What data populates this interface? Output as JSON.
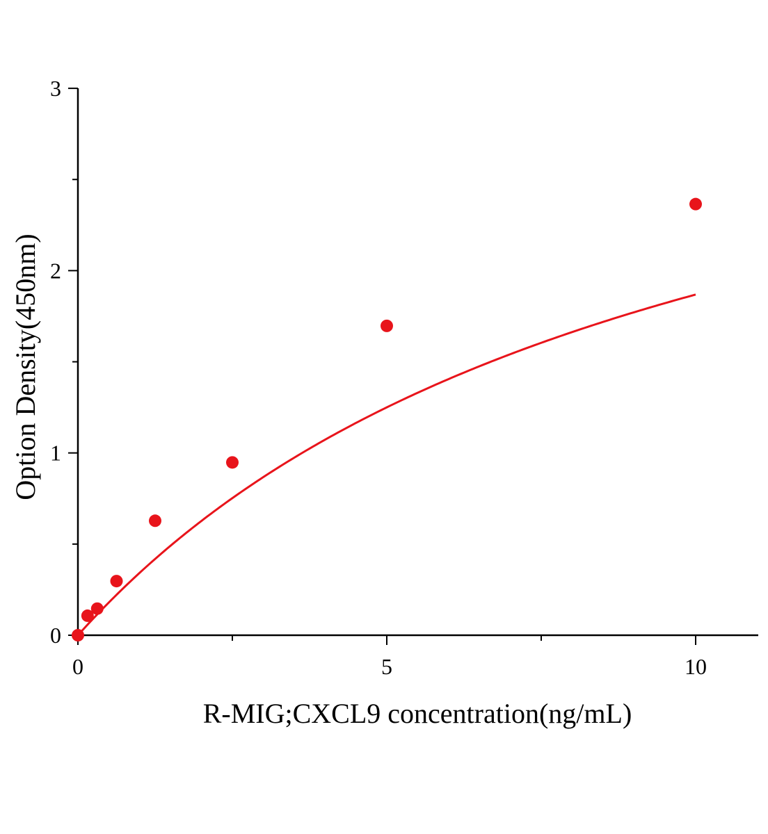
{
  "chart_data": {
    "type": "scatter",
    "title": "",
    "xlabel": "R-MIG;CXCL9 concentration(ng/mL)",
    "ylabel": "Option Density(450nm)",
    "xlim": [
      0,
      11
    ],
    "ylim": [
      0,
      3
    ],
    "x_ticks": [
      0,
      5,
      10
    ],
    "x_tick_labels": [
      "0",
      "5",
      "10"
    ],
    "x_minor_ticks": [
      2.5,
      7.5
    ],
    "y_ticks": [
      0,
      1,
      2,
      3
    ],
    "y_tick_labels": [
      "0",
      "1",
      "2",
      "3"
    ],
    "y_minor_ticks": [
      0.5,
      1.5,
      2.5
    ],
    "grid": false,
    "color": "#e8141b",
    "series": [
      {
        "points": [
          {
            "x": 0,
            "y": 0.0
          },
          {
            "x": 0.156,
            "y": 0.107
          },
          {
            "x": 0.313,
            "y": 0.146
          },
          {
            "x": 0.625,
            "y": 0.297
          },
          {
            "x": 1.25,
            "y": 0.628
          },
          {
            "x": 2.5,
            "y": 0.948
          },
          {
            "x": 5,
            "y": 1.697
          },
          {
            "x": 10,
            "y": 2.365
          }
        ],
        "fit": {
          "model": "saturating",
          "a": 3.7,
          "b": 9.8
        }
      }
    ]
  }
}
